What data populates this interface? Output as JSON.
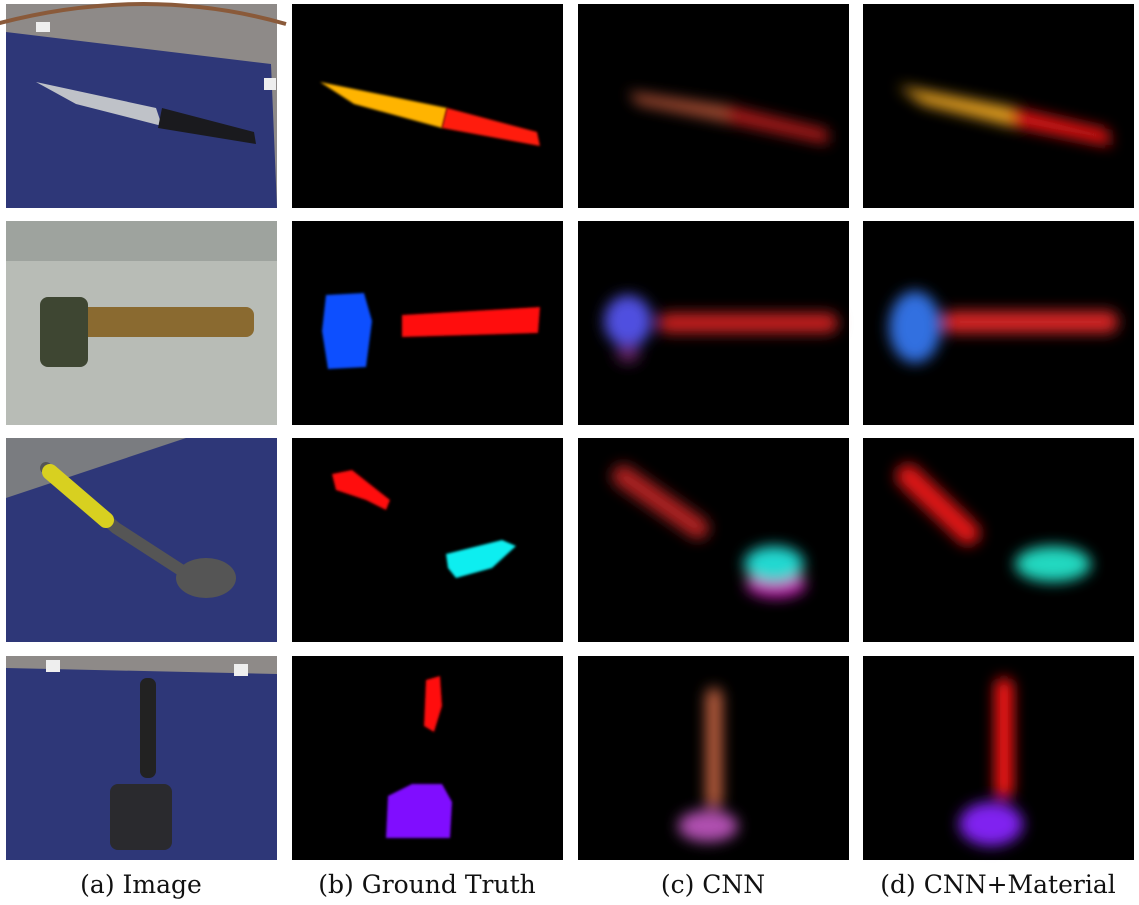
{
  "figure": {
    "captions": [
      "(a) Image",
      "(b) Ground Truth",
      "(c) CNN",
      "(d) CNN+Material"
    ]
  }
}
